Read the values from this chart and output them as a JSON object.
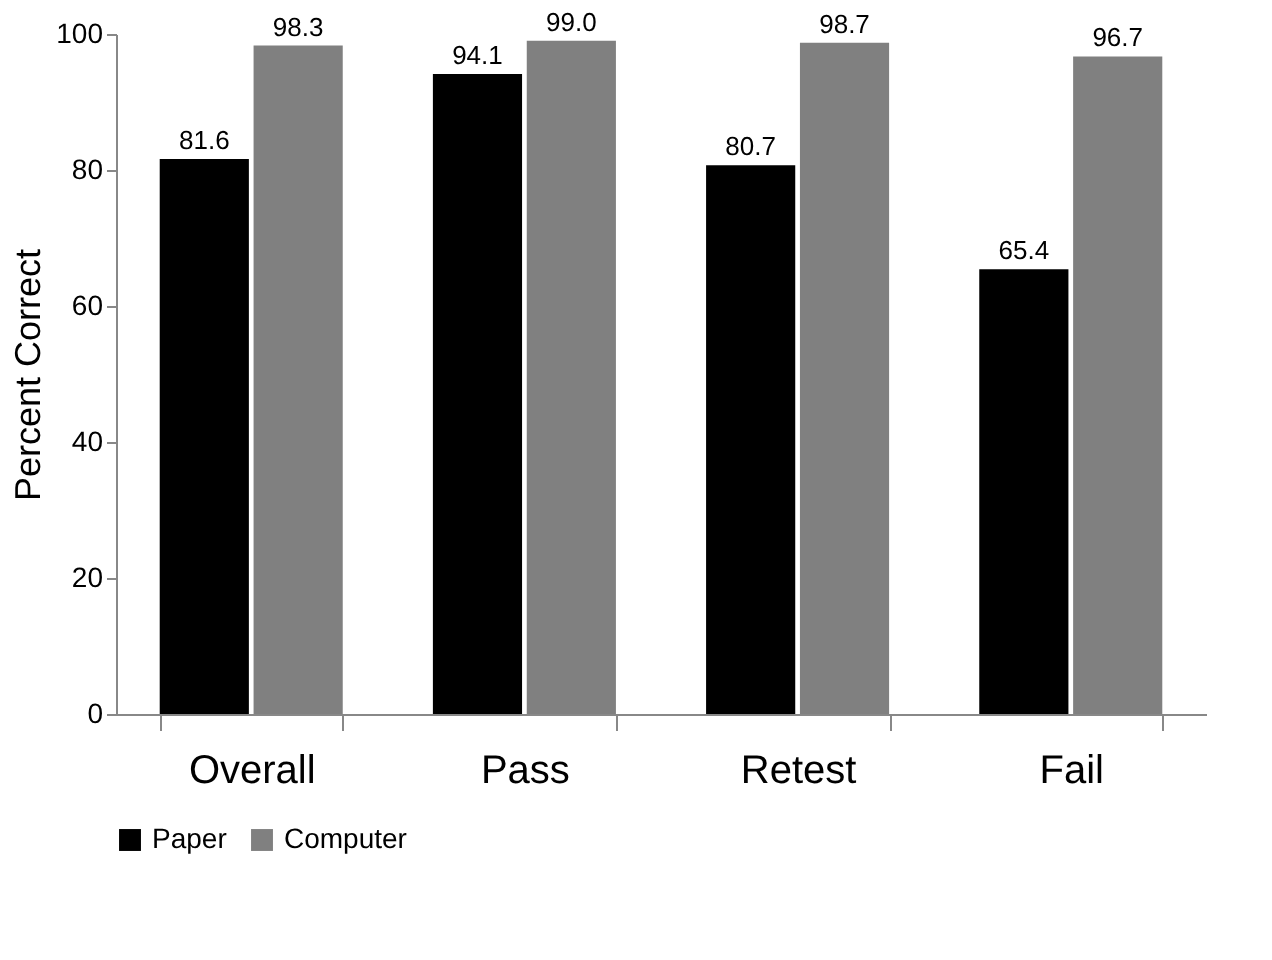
{
  "chart_data": {
    "type": "bar",
    "ylabel": "Percent Correct",
    "categories": [
      "Overall",
      "Pass",
      "Retest",
      "Fail"
    ],
    "series": [
      {
        "name": "Paper",
        "color": "#000000",
        "values": [
          81.6,
          94.1,
          80.7,
          65.4
        ]
      },
      {
        "name": "Computer",
        "color": "#808080",
        "values": [
          98.3,
          99.0,
          98.7,
          96.7
        ]
      }
    ],
    "value_labels": [
      [
        "81.6",
        "94.1",
        "80.7",
        "65.4"
      ],
      [
        "98.3",
        "99.0",
        "98.7",
        "96.7"
      ]
    ],
    "ylim": [
      0,
      100
    ],
    "yticks": [
      0,
      20,
      40,
      60,
      80,
      100
    ],
    "grid": false,
    "legend": "bottom"
  }
}
